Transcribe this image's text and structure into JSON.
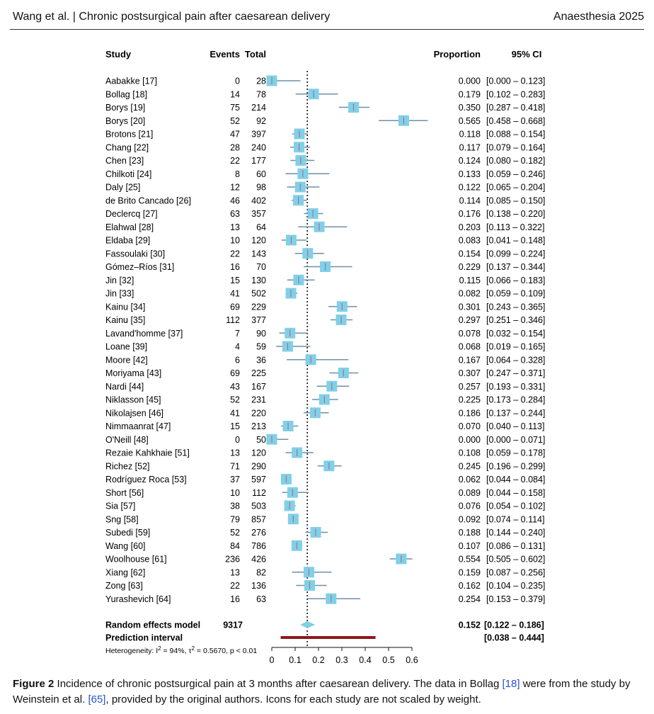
{
  "header": {
    "left": "Wang et al.  |  Chronic postsurgical pain after caesarean delivery",
    "right": "Anaesthesia 2025"
  },
  "columns": {
    "study": "Study",
    "events": "Events",
    "total": "Total",
    "proportion": "Proportion",
    "ci": "95% CI"
  },
  "chart_data": {
    "type": "forest",
    "xlim": [
      0,
      0.6
    ],
    "xticks": [
      "0",
      "0.1",
      "0.2",
      "0.3",
      "0.4",
      "0.5",
      "0.6"
    ],
    "reference_line": 0.152,
    "studies": [
      {
        "study": "Aabakke [17]",
        "events": "0",
        "total": "28",
        "prop": 0.0,
        "lo": 0.0,
        "hi": 0.123,
        "prop_text": "0.000",
        "ci_text": "[0.000 – 0.123]"
      },
      {
        "study": "Bollag [18]",
        "events": "14",
        "total": "78",
        "prop": 0.179,
        "lo": 0.102,
        "hi": 0.283,
        "prop_text": "0.179",
        "ci_text": "[0.102 – 0.283]"
      },
      {
        "study": "Borys [19]",
        "events": "75",
        "total": "214",
        "prop": 0.35,
        "lo": 0.287,
        "hi": 0.418,
        "prop_text": "0.350",
        "ci_text": "[0.287 – 0.418]"
      },
      {
        "study": "Borys [20]",
        "events": "52",
        "total": "92",
        "prop": 0.565,
        "lo": 0.458,
        "hi": 0.668,
        "prop_text": "0.565",
        "ci_text": "[0.458 – 0.668]"
      },
      {
        "study": "Brotons [21]",
        "events": "47",
        "total": "397",
        "prop": 0.118,
        "lo": 0.088,
        "hi": 0.154,
        "prop_text": "0.118",
        "ci_text": "[0.088 – 0.154]"
      },
      {
        "study": "Chang [22]",
        "events": "28",
        "total": "240",
        "prop": 0.117,
        "lo": 0.079,
        "hi": 0.164,
        "prop_text": "0.117",
        "ci_text": "[0.079 – 0.164]"
      },
      {
        "study": "Chen [23]",
        "events": "22",
        "total": "177",
        "prop": 0.124,
        "lo": 0.08,
        "hi": 0.182,
        "prop_text": "0.124",
        "ci_text": "[0.080 – 0.182]"
      },
      {
        "study": "Chilkoti [24]",
        "events": "8",
        "total": "60",
        "prop": 0.133,
        "lo": 0.059,
        "hi": 0.246,
        "prop_text": "0.133",
        "ci_text": "[0.059 – 0.246]"
      },
      {
        "study": "Daly [25]",
        "events": "12",
        "total": "98",
        "prop": 0.122,
        "lo": 0.065,
        "hi": 0.204,
        "prop_text": "0.122",
        "ci_text": "[0.065 – 0.204]"
      },
      {
        "study": "de Brito Cancado [26]",
        "events": "46",
        "total": "402",
        "prop": 0.114,
        "lo": 0.085,
        "hi": 0.15,
        "prop_text": "0.114",
        "ci_text": "[0.085 – 0.150]"
      },
      {
        "study": "Declercq [27]",
        "events": "63",
        "total": "357",
        "prop": 0.176,
        "lo": 0.138,
        "hi": 0.22,
        "prop_text": "0.176",
        "ci_text": "[0.138 – 0.220]"
      },
      {
        "study": "Elahwal [28]",
        "events": "13",
        "total": "64",
        "prop": 0.203,
        "lo": 0.113,
        "hi": 0.322,
        "prop_text": "0.203",
        "ci_text": "[0.113 – 0.322]"
      },
      {
        "study": "Eldaba [29]",
        "events": "10",
        "total": "120",
        "prop": 0.083,
        "lo": 0.041,
        "hi": 0.148,
        "prop_text": "0.083",
        "ci_text": "[0.041 – 0.148]"
      },
      {
        "study": "Fassoulaki [30]",
        "events": "22",
        "total": "143",
        "prop": 0.154,
        "lo": 0.099,
        "hi": 0.224,
        "prop_text": "0.154",
        "ci_text": "[0.099 – 0.224]"
      },
      {
        "study": "Gómez–Ríos [31]",
        "events": "16",
        "total": "70",
        "prop": 0.229,
        "lo": 0.137,
        "hi": 0.344,
        "prop_text": "0.229",
        "ci_text": "[0.137 – 0.344]"
      },
      {
        "study": "Jin [32]",
        "events": "15",
        "total": "130",
        "prop": 0.115,
        "lo": 0.066,
        "hi": 0.183,
        "prop_text": "0.115",
        "ci_text": "[0.066 – 0.183]"
      },
      {
        "study": "Jin [33]",
        "events": "41",
        "total": "502",
        "prop": 0.082,
        "lo": 0.059,
        "hi": 0.109,
        "prop_text": "0.082",
        "ci_text": "[0.059 – 0.109]"
      },
      {
        "study": "Kainu [34]",
        "events": "69",
        "total": "229",
        "prop": 0.301,
        "lo": 0.243,
        "hi": 0.365,
        "prop_text": "0.301",
        "ci_text": "[0.243 – 0.365]"
      },
      {
        "study": "Kainu [35]",
        "events": "112",
        "total": "377",
        "prop": 0.297,
        "lo": 0.251,
        "hi": 0.346,
        "prop_text": "0.297",
        "ci_text": "[0.251 – 0.346]"
      },
      {
        "study": "Lavand'homme [37]",
        "events": "7",
        "total": "90",
        "prop": 0.078,
        "lo": 0.032,
        "hi": 0.154,
        "prop_text": "0.078",
        "ci_text": "[0.032 – 0.154]"
      },
      {
        "study": "Loane [39]",
        "events": "4",
        "total": "59",
        "prop": 0.068,
        "lo": 0.019,
        "hi": 0.165,
        "prop_text": "0.068",
        "ci_text": "[0.019 – 0.165]"
      },
      {
        "study": "Moore [42]",
        "events": "6",
        "total": "36",
        "prop": 0.167,
        "lo": 0.064,
        "hi": 0.328,
        "prop_text": "0.167",
        "ci_text": "[0.064 – 0.328]"
      },
      {
        "study": "Moriyama [43]",
        "events": "69",
        "total": "225",
        "prop": 0.307,
        "lo": 0.247,
        "hi": 0.371,
        "prop_text": "0.307",
        "ci_text": "[0.247 – 0.371]"
      },
      {
        "study": "Nardi [44]",
        "events": "43",
        "total": "167",
        "prop": 0.257,
        "lo": 0.193,
        "hi": 0.331,
        "prop_text": "0.257",
        "ci_text": "[0.193 – 0.331]"
      },
      {
        "study": "Niklasson [45]",
        "events": "52",
        "total": "231",
        "prop": 0.225,
        "lo": 0.173,
        "hi": 0.284,
        "prop_text": "0.225",
        "ci_text": "[0.173 – 0.284]"
      },
      {
        "study": "Nikolajsen [46]",
        "events": "41",
        "total": "220",
        "prop": 0.186,
        "lo": 0.137,
        "hi": 0.244,
        "prop_text": "0.186",
        "ci_text": "[0.137 – 0.244]"
      },
      {
        "study": "Nimmaanrat [47]",
        "events": "15",
        "total": "213",
        "prop": 0.07,
        "lo": 0.04,
        "hi": 0.113,
        "prop_text": "0.070",
        "ci_text": "[0.040 – 0.113]"
      },
      {
        "study": "O'Neill [48]",
        "events": "0",
        "total": "50",
        "prop": 0.0,
        "lo": 0.0,
        "hi": 0.071,
        "prop_text": "0.000",
        "ci_text": "[0.000 – 0.071]"
      },
      {
        "study": "Rezaie Kahkhaie [51]",
        "events": "13",
        "total": "120",
        "prop": 0.108,
        "lo": 0.059,
        "hi": 0.178,
        "prop_text": "0.108",
        "ci_text": "[0.059 – 0.178]"
      },
      {
        "study": "Richez [52]",
        "events": "71",
        "total": "290",
        "prop": 0.245,
        "lo": 0.196,
        "hi": 0.299,
        "prop_text": "0.245",
        "ci_text": "[0.196 – 0.299]"
      },
      {
        "study": "Rodríguez Roca  [53]",
        "events": "37",
        "total": "597",
        "prop": 0.062,
        "lo": 0.044,
        "hi": 0.084,
        "prop_text": "0.062",
        "ci_text": "[0.044 – 0.084]"
      },
      {
        "study": "Short [56]",
        "events": "10",
        "total": "112",
        "prop": 0.089,
        "lo": 0.044,
        "hi": 0.158,
        "prop_text": "0.089",
        "ci_text": "[0.044 – 0.158]"
      },
      {
        "study": "Sia [57]",
        "events": "38",
        "total": "503",
        "prop": 0.076,
        "lo": 0.054,
        "hi": 0.102,
        "prop_text": "0.076",
        "ci_text": "[0.054 – 0.102]"
      },
      {
        "study": "Sng [58]",
        "events": "79",
        "total": "857",
        "prop": 0.092,
        "lo": 0.074,
        "hi": 0.114,
        "prop_text": "0.092",
        "ci_text": "[0.074 – 0.114]"
      },
      {
        "study": "Subedi [59]",
        "events": "52",
        "total": "276",
        "prop": 0.188,
        "lo": 0.144,
        "hi": 0.24,
        "prop_text": "0.188",
        "ci_text": "[0.144 – 0.240]"
      },
      {
        "study": "Wang [60]",
        "events": "84",
        "total": "786",
        "prop": 0.107,
        "lo": 0.086,
        "hi": 0.131,
        "prop_text": "0.107",
        "ci_text": "[0.086 – 0.131]"
      },
      {
        "study": "Woolhouse [61]",
        "events": "236",
        "total": "426",
        "prop": 0.554,
        "lo": 0.505,
        "hi": 0.602,
        "prop_text": "0.554",
        "ci_text": "[0.505 – 0.602]"
      },
      {
        "study": "Xiang [62]",
        "events": "13",
        "total": "82",
        "prop": 0.159,
        "lo": 0.087,
        "hi": 0.256,
        "prop_text": "0.159",
        "ci_text": "[0.087 – 0.256]"
      },
      {
        "study": "Zong [63]",
        "events": "22",
        "total": "136",
        "prop": 0.162,
        "lo": 0.104,
        "hi": 0.235,
        "prop_text": "0.162",
        "ci_text": "[0.104 – 0.235]"
      },
      {
        "study": "Yurashevich [64]",
        "events": "16",
        "total": "63",
        "prop": 0.254,
        "lo": 0.153,
        "hi": 0.379,
        "prop_text": "0.254",
        "ci_text": "[0.153 – 0.379]"
      }
    ],
    "random_effects": {
      "label": "Random effects model",
      "total": "9317",
      "prop": 0.152,
      "lo": 0.122,
      "hi": 0.186,
      "prop_text": "0.152",
      "ci_text": "[0.122 – 0.186]"
    },
    "prediction_interval": {
      "label": "Prediction interval",
      "lo": 0.038,
      "hi": 0.444,
      "ci_text": "[0.038 – 0.444]"
    },
    "heterogeneity": {
      "prefix": "Heterogeneity: I",
      "i2_value": " = 94%, τ",
      "tau2_value": " = 0.5670, p < 0.01"
    },
    "colors": {
      "square": "#7fd0e8",
      "ci_line": "#6f8fa8",
      "center_tick": "#b06a7a",
      "diamond": "#7fd0e8",
      "prediction": "#8b1a1a",
      "reference": "#111111"
    }
  },
  "caption": {
    "figure_label": "Figure 2",
    "text1": "  Incidence of chronic postsurgical pain at 3  months after caesarean delivery. The data in Bollag ",
    "ref1": "[18]",
    "text2": " were from the study by Weinstein et al. ",
    "ref2": "[65]",
    "text3": ", provided by the original authors. Icons for each study are not scaled by weight."
  }
}
